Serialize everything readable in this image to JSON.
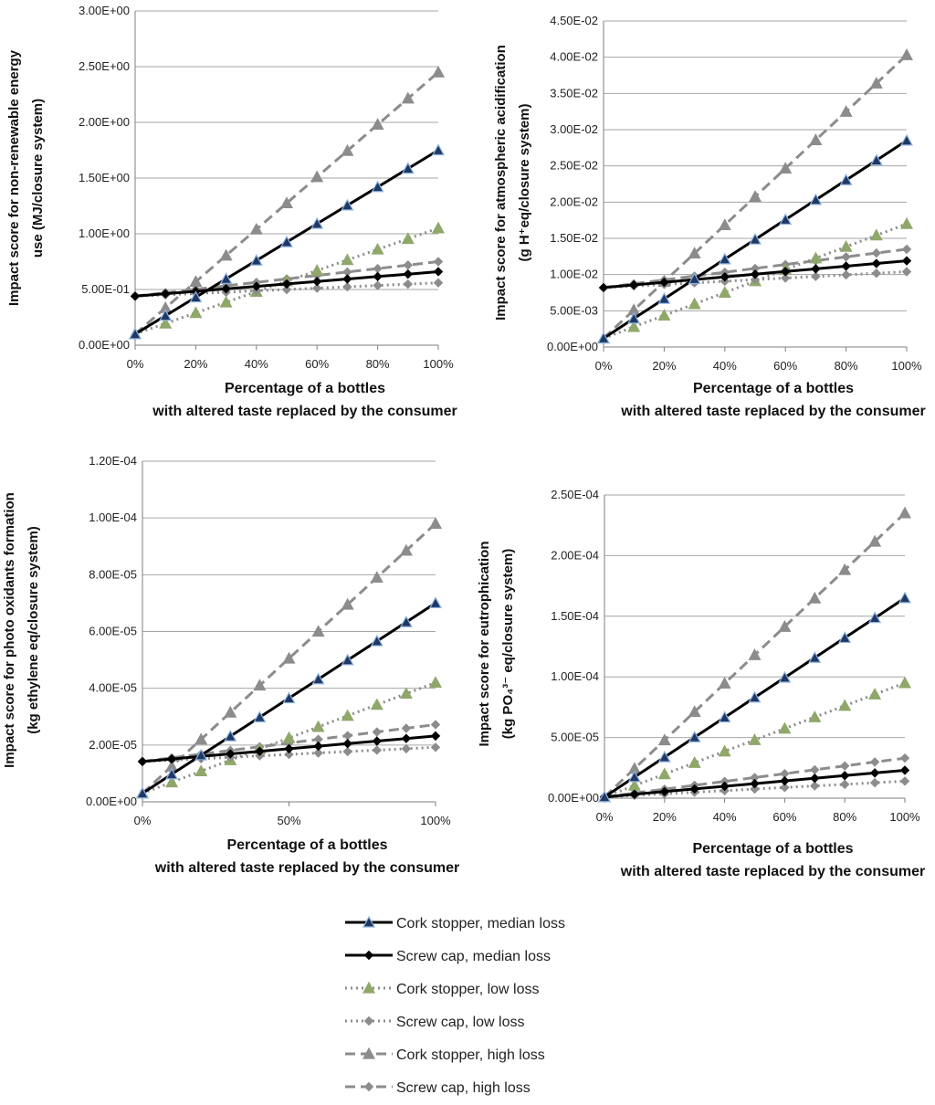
{
  "chart_data": [
    {
      "type": "line",
      "id": "energy",
      "ylabel_lines": [
        "Impact score for non-renewable energy",
        "use  (MJ/closure system)"
      ],
      "xlabel_lines": [
        "Percentage of a bottles",
        "with altered taste replaced by the consumer"
      ],
      "x": [
        0,
        10,
        20,
        30,
        40,
        50,
        60,
        70,
        80,
        90,
        100
      ],
      "xticks": [
        0,
        20,
        40,
        60,
        80,
        100
      ],
      "xtick_labels": [
        "0%",
        "20%",
        "40%",
        "60%",
        "80%",
        "100%"
      ],
      "ylim": [
        0,
        3.0
      ],
      "yticks": [
        0,
        0.5,
        1.0,
        1.5,
        2.0,
        2.5,
        3.0
      ],
      "ytick_labels": [
        "0.00E+00",
        "5.00E-01",
        "1.00E+00",
        "1.50E+00",
        "2.00E+00",
        "2.50E+00",
        "3.00E+00"
      ],
      "series": [
        {
          "name": "Cork stopper, median loss",
          "values": [
            0.1,
            0.265,
            0.43,
            0.595,
            0.76,
            0.925,
            1.09,
            1.255,
            1.42,
            1.585,
            1.75
          ]
        },
        {
          "name": "Screw cap, median loss",
          "values": [
            0.44,
            0.462,
            0.484,
            0.506,
            0.528,
            0.55,
            0.572,
            0.594,
            0.616,
            0.638,
            0.66
          ]
        },
        {
          "name": "Cork stopper, low loss",
          "values": [
            0.1,
            0.195,
            0.29,
            0.385,
            0.48,
            0.575,
            0.67,
            0.765,
            0.86,
            0.955,
            1.05
          ]
        },
        {
          "name": "Screw cap, low loss",
          "values": [
            0.44,
            0.452,
            0.464,
            0.476,
            0.488,
            0.5,
            0.512,
            0.524,
            0.536,
            0.548,
            0.56
          ]
        },
        {
          "name": "Cork stopper, high loss",
          "values": [
            0.1,
            0.335,
            0.57,
            0.805,
            1.04,
            1.275,
            1.51,
            1.745,
            1.98,
            2.215,
            2.45
          ]
        },
        {
          "name": "Screw cap, high loss",
          "values": [
            0.44,
            0.471,
            0.502,
            0.533,
            0.564,
            0.595,
            0.626,
            0.657,
            0.688,
            0.719,
            0.75
          ]
        }
      ]
    },
    {
      "type": "line",
      "id": "acidification",
      "ylabel_lines": [
        "Impact score for atmospheric acidification",
        "(g H⁺eq/closure system)"
      ],
      "xlabel_lines": [
        "Percentage of a bottles",
        "with altered taste replaced by the consumer"
      ],
      "x": [
        0,
        10,
        20,
        30,
        40,
        50,
        60,
        70,
        80,
        90,
        100
      ],
      "xticks": [
        0,
        20,
        40,
        60,
        80,
        100
      ],
      "xtick_labels": [
        "0%",
        "20%",
        "40%",
        "60%",
        "80%",
        "100%"
      ],
      "ylim": [
        0,
        0.045
      ],
      "yticks": [
        0,
        0.005,
        0.01,
        0.015,
        0.02,
        0.025,
        0.03,
        0.035,
        0.04,
        0.045
      ],
      "ytick_labels": [
        "0.00E+00",
        "5.00E-03",
        "1.00E-02",
        "1.50E-02",
        "2.00E-02",
        "2.50E-02",
        "3.00E-02",
        "3.50E-02",
        "4.00E-02",
        "4.50E-02"
      ],
      "series": [
        {
          "name": "Cork stopper, median loss",
          "values": [
            0.0012,
            0.00393,
            0.00666,
            0.00939,
            0.01212,
            0.01485,
            0.01758,
            0.02031,
            0.02304,
            0.02577,
            0.0285
          ]
        },
        {
          "name": "Screw cap, median loss",
          "values": [
            0.0082,
            0.00857,
            0.00894,
            0.00931,
            0.00968,
            0.01005,
            0.01042,
            0.01079,
            0.01116,
            0.01153,
            0.0119
          ]
        },
        {
          "name": "Cork stopper, low loss",
          "values": [
            0.0012,
            0.00278,
            0.00436,
            0.00594,
            0.00752,
            0.0091,
            0.01068,
            0.01226,
            0.01384,
            0.01542,
            0.017
          ]
        },
        {
          "name": "Screw cap, low loss",
          "values": [
            0.0082,
            0.00842,
            0.00864,
            0.00886,
            0.00908,
            0.0093,
            0.00952,
            0.00974,
            0.00996,
            0.01018,
            0.0104
          ]
        },
        {
          "name": "Cork stopper, high loss",
          "values": [
            0.0012,
            0.00511,
            0.00902,
            0.01293,
            0.01684,
            0.02075,
            0.02466,
            0.02857,
            0.03248,
            0.03639,
            0.0403
          ]
        },
        {
          "name": "Screw cap, high loss",
          "values": [
            0.0082,
            0.00873,
            0.00926,
            0.00979,
            0.01032,
            0.01085,
            0.01138,
            0.01191,
            0.01244,
            0.01297,
            0.0135
          ]
        }
      ]
    },
    {
      "type": "line",
      "id": "photo_oxidants",
      "ylabel_lines": [
        "Impact score for photo oxidants formation",
        "(kg ethylene  eq/closure system)"
      ],
      "xlabel_lines": [
        "Percentage of a bottles",
        "with altered taste replaced by the consumer"
      ],
      "x": [
        0,
        10,
        20,
        30,
        40,
        50,
        60,
        70,
        80,
        90,
        100
      ],
      "xticks": [
        0,
        50,
        100
      ],
      "xtick_labels": [
        "0%",
        "50%",
        "100%"
      ],
      "ylim": [
        0,
        0.00012
      ],
      "yticks": [
        0,
        2e-05,
        4e-05,
        6e-05,
        8e-05,
        0.0001,
        0.00012
      ],
      "ytick_labels": [
        "0.00E+00",
        "2.00E-05",
        "4.00E-05",
        "6.00E-05",
        "8.00E-05",
        "1.00E-04",
        "1.20E-04"
      ],
      "series": [
        {
          "name": "Cork stopper, median loss",
          "values": [
            3e-06,
            9.7e-06,
            1.64e-05,
            2.31e-05,
            2.98e-05,
            3.65e-05,
            4.32e-05,
            4.99e-05,
            5.66e-05,
            6.33e-05,
            7e-05
          ]
        },
        {
          "name": "Screw cap, median loss",
          "values": [
            1.42e-05,
            1.51e-05,
            1.6e-05,
            1.69e-05,
            1.78e-05,
            1.87e-05,
            1.96e-05,
            2.05e-05,
            2.14e-05,
            2.23e-05,
            2.32e-05
          ]
        },
        {
          "name": "Cork stopper, low loss",
          "values": [
            3e-06,
            6.9e-06,
            1.08e-05,
            1.47e-05,
            1.86e-05,
            2.25e-05,
            2.64e-05,
            3.03e-05,
            3.42e-05,
            3.81e-05,
            4.2e-05
          ]
        },
        {
          "name": "Screw cap, low loss",
          "values": [
            1.42e-05,
            1.47e-05,
            1.52e-05,
            1.57e-05,
            1.62e-05,
            1.67e-05,
            1.72e-05,
            1.77e-05,
            1.82e-05,
            1.87e-05,
            1.92e-05
          ]
        },
        {
          "name": "Cork stopper, high loss",
          "values": [
            3e-06,
            1.25e-05,
            2.2e-05,
            3.15e-05,
            4.1e-05,
            5.05e-05,
            6e-05,
            6.95e-05,
            7.9e-05,
            8.85e-05,
            9.8e-05
          ]
        },
        {
          "name": "Screw cap, high loss",
          "values": [
            1.42e-05,
            1.55e-05,
            1.68e-05,
            1.81e-05,
            1.94e-05,
            2.07e-05,
            2.2e-05,
            2.33e-05,
            2.46e-05,
            2.59e-05,
            2.72e-05
          ]
        }
      ]
    },
    {
      "type": "line",
      "id": "eutrophication",
      "ylabel_lines": [
        "Impact score for eutrophication",
        "(kg PO₄³⁻ eq/closure system)"
      ],
      "xlabel_lines": [
        "Percentage of a bottles",
        "with altered taste replaced by the consumer"
      ],
      "x": [
        0,
        10,
        20,
        30,
        40,
        50,
        60,
        70,
        80,
        90,
        100
      ],
      "xticks": [
        0,
        20,
        40,
        60,
        80,
        100
      ],
      "xtick_labels": [
        "0%",
        "20%",
        "40%",
        "60%",
        "80%",
        "100%"
      ],
      "ylim": [
        0,
        0.00025
      ],
      "yticks": [
        0,
        5e-05,
        0.0001,
        0.00015,
        0.0002,
        0.00025
      ],
      "ytick_labels": [
        "0.00E+00",
        "5.00E-05",
        "1.00E-04",
        "1.50E-04",
        "2.00E-04",
        "2.50E-04"
      ],
      "series": [
        {
          "name": "Cork stopper, median loss",
          "values": [
            1e-06,
            1.74e-05,
            3.38e-05,
            5.02e-05,
            6.66e-05,
            8.3e-05,
            9.94e-05,
            0.0001158,
            0.0001322,
            0.0001486,
            0.000165
          ]
        },
        {
          "name": "Screw cap, median loss",
          "values": [
            1e-06,
            3.2e-06,
            5.4e-06,
            7.6e-06,
            9.8e-06,
            1.2e-05,
            1.42e-05,
            1.64e-05,
            1.86e-05,
            2.08e-05,
            2.3e-05
          ]
        },
        {
          "name": "Cork stopper, low loss",
          "values": [
            1e-06,
            1.04e-05,
            1.98e-05,
            2.92e-05,
            3.86e-05,
            4.8e-05,
            5.74e-05,
            6.68e-05,
            7.62e-05,
            8.56e-05,
            9.5e-05
          ]
        },
        {
          "name": "Screw cap, low loss",
          "values": [
            1e-06,
            2.3e-06,
            3.6e-06,
            4.9e-06,
            6.2e-06,
            7.5e-06,
            8.8e-06,
            1.01e-05,
            1.14e-05,
            1.27e-05,
            1.4e-05
          ]
        },
        {
          "name": "Cork stopper, high loss",
          "values": [
            1e-06,
            2.44e-05,
            4.78e-05,
            7.12e-05,
            9.46e-05,
            0.000118,
            0.0001414,
            0.0001648,
            0.0001882,
            0.0002116,
            0.000235
          ]
        },
        {
          "name": "Screw cap, high loss",
          "values": [
            1e-06,
            4.2e-06,
            7.4e-06,
            1.06e-05,
            1.38e-05,
            1.7e-05,
            2.02e-05,
            2.34e-05,
            2.66e-05,
            2.98e-05,
            3.3e-05
          ]
        }
      ]
    }
  ],
  "legend": {
    "items": [
      {
        "label": "Cork stopper, median loss"
      },
      {
        "label": "Screw cap, median loss"
      },
      {
        "label": "Cork stopper, low loss"
      },
      {
        "label": "Screw cap, low loss"
      },
      {
        "label": "Cork stopper, high loss"
      },
      {
        "label": "Screw cap, high loss"
      }
    ]
  },
  "styles": {
    "series": [
      {
        "color": "#000000",
        "dash": "",
        "marker": "triangle",
        "marker_fill": "#1f3864",
        "marker_stroke": "#8fb4e3"
      },
      {
        "color": "#000000",
        "dash": "",
        "marker": "diamond",
        "marker_fill": "#000000",
        "marker_stroke": "#000000"
      },
      {
        "color": "#8c8c8c",
        "dash": "dot",
        "marker": "triangle",
        "marker_fill": "#8fa86a",
        "marker_stroke": "#8fa86a"
      },
      {
        "color": "#8c8c8c",
        "dash": "dot",
        "marker": "diamond",
        "marker_fill": "#8c8c8c",
        "marker_stroke": "#8c8c8c"
      },
      {
        "color": "#8c8c8c",
        "dash": "dash",
        "marker": "triangle",
        "marker_fill": "#8c8c8c",
        "marker_stroke": "#8c8c8c"
      },
      {
        "color": "#8c8c8c",
        "dash": "dash",
        "marker": "diamond",
        "marker_fill": "#8c8c8c",
        "marker_stroke": "#8c8c8c"
      }
    ]
  }
}
